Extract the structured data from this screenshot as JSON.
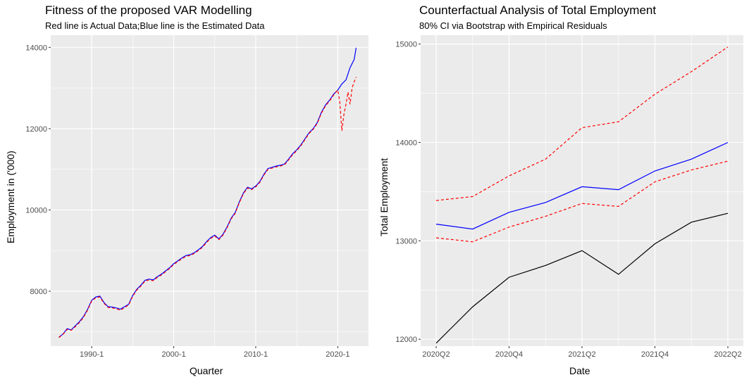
{
  "chart_data": [
    {
      "type": "line",
      "title": "Fitness of the proposed VAR Modelling",
      "subtitle": "Red line is Actual Data;Blue line is the Estimated Data",
      "xlabel": "Quarter",
      "ylabel": "Employment in ('000)",
      "x_tick_labels": [
        "1990-1",
        "2000-1",
        "2010-1",
        "2020-1"
      ],
      "y_tick_labels": [
        "8000",
        "10000",
        "12000",
        "14000"
      ],
      "xlim": [
        1985.0,
        2023.75
      ],
      "ylim": [
        6650,
        14300
      ],
      "grid": true,
      "legend": "none",
      "series": [
        {
          "color": "#0000ff",
          "linestyle": "solid",
          "x": [
            1986.0,
            1986.5,
            1987.0,
            1987.5,
            1988.0,
            1988.5,
            1989.0,
            1989.5,
            1990.0,
            1990.5,
            1991.0,
            1991.5,
            1992.0,
            1992.5,
            1993.0,
            1993.5,
            1994.0,
            1994.5,
            1995.0,
            1995.5,
            1996.0,
            1996.5,
            1997.0,
            1997.5,
            1998.0,
            1998.5,
            1999.0,
            1999.5,
            2000.0,
            2000.5,
            2001.0,
            2001.5,
            2002.0,
            2002.5,
            2003.0,
            2003.5,
            2004.0,
            2004.5,
            2005.0,
            2005.5,
            2006.0,
            2006.5,
            2007.0,
            2007.5,
            2008.0,
            2008.5,
            2009.0,
            2009.5,
            2010.0,
            2010.5,
            2011.0,
            2011.5,
            2012.0,
            2012.5,
            2013.0,
            2013.5,
            2014.0,
            2014.5,
            2015.0,
            2015.5,
            2016.0,
            2016.5,
            2017.0,
            2017.5,
            2018.0,
            2018.5,
            2019.0,
            2019.5,
            2020.0,
            2020.5,
            2021.0,
            2021.5,
            2022.0,
            2022.25
          ],
          "y": [
            6870,
            6950,
            7080,
            7050,
            7150,
            7250,
            7380,
            7560,
            7780,
            7860,
            7880,
            7720,
            7620,
            7610,
            7590,
            7560,
            7620,
            7680,
            7900,
            8050,
            8150,
            8270,
            8300,
            8280,
            8360,
            8420,
            8500,
            8580,
            8680,
            8750,
            8820,
            8880,
            8900,
            8950,
            9020,
            9100,
            9220,
            9320,
            9380,
            9290,
            9400,
            9580,
            9800,
            9940,
            10200,
            10420,
            10560,
            10520,
            10590,
            10700,
            10880,
            11020,
            11050,
            11080,
            11100,
            11130,
            11250,
            11380,
            11480,
            11600,
            11750,
            11900,
            12000,
            12150,
            12400,
            12580,
            12700,
            12850,
            12950,
            13100,
            13200,
            13500,
            13700,
            13990
          ]
        },
        {
          "color": "#ff0000",
          "linestyle": "dashed",
          "x": [
            1986.0,
            1986.5,
            1987.0,
            1987.5,
            1988.0,
            1988.5,
            1989.0,
            1989.5,
            1990.0,
            1990.5,
            1991.0,
            1991.5,
            1992.0,
            1992.5,
            1993.0,
            1993.5,
            1994.0,
            1994.5,
            1995.0,
            1995.5,
            1996.0,
            1996.5,
            1997.0,
            1997.5,
            1998.0,
            1998.5,
            1999.0,
            1999.5,
            2000.0,
            2000.5,
            2001.0,
            2001.5,
            2002.0,
            2002.5,
            2003.0,
            2003.5,
            2004.0,
            2004.5,
            2005.0,
            2005.5,
            2006.0,
            2006.5,
            2007.0,
            2007.5,
            2008.0,
            2008.5,
            2009.0,
            2009.5,
            2010.0,
            2010.5,
            2011.0,
            2011.5,
            2012.0,
            2012.5,
            2013.0,
            2013.5,
            2014.0,
            2014.5,
            2015.0,
            2015.5,
            2016.0,
            2016.5,
            2017.0,
            2017.5,
            2018.0,
            2018.5,
            2019.0,
            2019.5,
            2020.0,
            2020.25,
            2020.5,
            2020.75,
            2021.0,
            2021.25,
            2021.5,
            2021.75,
            2022.0,
            2022.25
          ],
          "y": [
            6860,
            6940,
            7060,
            7040,
            7130,
            7230,
            7360,
            7540,
            7760,
            7840,
            7860,
            7700,
            7600,
            7590,
            7570,
            7530,
            7600,
            7660,
            7880,
            8030,
            8130,
            8250,
            8280,
            8260,
            8340,
            8400,
            8480,
            8560,
            8660,
            8730,
            8800,
            8860,
            8880,
            8930,
            9000,
            9080,
            9200,
            9300,
            9360,
            9270,
            9380,
            9560,
            9780,
            9920,
            10180,
            10400,
            10540,
            10500,
            10570,
            10680,
            10860,
            11000,
            11030,
            11060,
            11080,
            11110,
            11230,
            11360,
            11460,
            11580,
            11730,
            11880,
            11980,
            12130,
            12380,
            12560,
            12680,
            12830,
            12950,
            12650,
            11950,
            12350,
            12600,
            12900,
            12600,
            13000,
            13150,
            13270
          ]
        }
      ]
    },
    {
      "type": "line",
      "title": "Counterfactual Analysis of Total Employment",
      "subtitle": "80% CI via Bootstrap with Empirical Residuals",
      "xlabel": "Date",
      "ylabel": "Total Employment",
      "categories": [
        "2020Q2",
        "2020Q3",
        "2020Q4",
        "2021Q1",
        "2021Q2",
        "2021Q3",
        "2021Q4",
        "2022Q1",
        "2022Q2"
      ],
      "x_tick_labels": [
        "2020Q2",
        "2020Q4",
        "2021Q2",
        "2021Q4",
        "2022Q2"
      ],
      "y_tick_labels": [
        "12000",
        "13000",
        "14000",
        "15000"
      ],
      "ylim": [
        11930,
        15090
      ],
      "grid": true,
      "legend": "none",
      "series": [
        {
          "color": "#000000",
          "linestyle": "solid",
          "values": [
            11960,
            12330,
            12630,
            12750,
            12900,
            12660,
            12970,
            13190,
            13280
          ]
        },
        {
          "color": "#0000ff",
          "linestyle": "solid",
          "values": [
            13170,
            13120,
            13290,
            13390,
            13550,
            13520,
            13710,
            13830,
            14000
          ]
        },
        {
          "color": "#ff0000",
          "linestyle": "dashed",
          "values": [
            13410,
            13450,
            13660,
            13830,
            14150,
            14210,
            14490,
            14720,
            14970
          ]
        },
        {
          "color": "#ff0000",
          "linestyle": "dashed",
          "values": [
            13030,
            12990,
            13140,
            13250,
            13380,
            13350,
            13600,
            13720,
            13810
          ]
        }
      ]
    }
  ]
}
